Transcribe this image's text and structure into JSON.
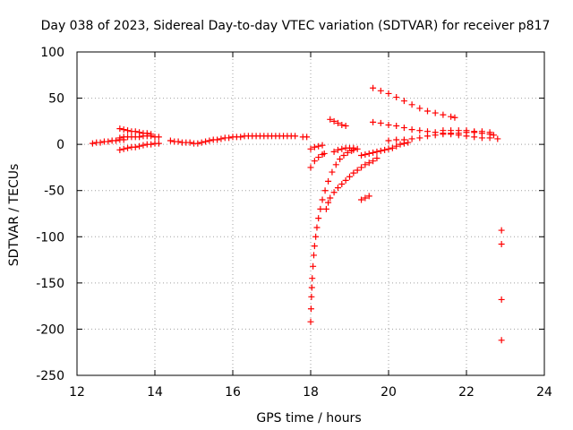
{
  "chart_data": {
    "type": "scatter",
    "title": "Day 038 of 2023, Sidereal Day-to-day VTEC variation (SDTVAR) for receiver p817",
    "xlabel": "GPS time / hours",
    "ylabel": "SDTVAR / TECUs",
    "xlim": [
      12,
      24
    ],
    "ylim": [
      -250,
      100
    ],
    "xticks": [
      12,
      14,
      16,
      18,
      20,
      22,
      24
    ],
    "yticks": [
      -250,
      -200,
      -150,
      -100,
      -50,
      0,
      50,
      100
    ],
    "grid": true,
    "marker": "plus",
    "color": "#ff0000",
    "series": [
      {
        "name": "p817",
        "points": [
          [
            12.4,
            1
          ],
          [
            12.5,
            2
          ],
          [
            12.6,
            2
          ],
          [
            12.7,
            3
          ],
          [
            12.8,
            3
          ],
          [
            12.9,
            4
          ],
          [
            13.0,
            4
          ],
          [
            13.1,
            5
          ],
          [
            13.2,
            5
          ],
          [
            13.1,
            7
          ],
          [
            13.2,
            8
          ],
          [
            13.3,
            8
          ],
          [
            13.4,
            8
          ],
          [
            13.5,
            8
          ],
          [
            13.6,
            8
          ],
          [
            13.7,
            9
          ],
          [
            13.8,
            9
          ],
          [
            13.9,
            9
          ],
          [
            14.0,
            8
          ],
          [
            14.1,
            8
          ],
          [
            13.1,
            17
          ],
          [
            13.2,
            16
          ],
          [
            13.3,
            15
          ],
          [
            13.4,
            14
          ],
          [
            13.5,
            14
          ],
          [
            13.6,
            13
          ],
          [
            13.7,
            12
          ],
          [
            13.8,
            12
          ],
          [
            13.9,
            11
          ],
          [
            13.1,
            -6
          ],
          [
            13.2,
            -5
          ],
          [
            13.3,
            -4
          ],
          [
            13.4,
            -3
          ],
          [
            13.5,
            -3
          ],
          [
            13.6,
            -2
          ],
          [
            13.7,
            -1
          ],
          [
            13.8,
            0
          ],
          [
            13.9,
            0
          ],
          [
            14.0,
            1
          ],
          [
            14.1,
            1
          ],
          [
            14.4,
            4
          ],
          [
            14.5,
            3
          ],
          [
            14.6,
            3
          ],
          [
            14.7,
            2
          ],
          [
            14.8,
            2
          ],
          [
            14.9,
            2
          ],
          [
            15.0,
            1
          ],
          [
            15.1,
            1
          ],
          [
            15.2,
            2
          ],
          [
            15.3,
            3
          ],
          [
            15.4,
            4
          ],
          [
            15.5,
            5
          ],
          [
            15.6,
            5
          ],
          [
            15.7,
            6
          ],
          [
            15.8,
            7
          ],
          [
            15.9,
            7
          ],
          [
            16.0,
            8
          ],
          [
            16.1,
            8
          ],
          [
            16.2,
            8
          ],
          [
            16.3,
            9
          ],
          [
            16.4,
            9
          ],
          [
            16.5,
            9
          ],
          [
            16.6,
            9
          ],
          [
            16.7,
            9
          ],
          [
            16.8,
            9
          ],
          [
            16.9,
            9
          ],
          [
            17.0,
            9
          ],
          [
            17.1,
            9
          ],
          [
            17.2,
            9
          ],
          [
            17.3,
            9
          ],
          [
            17.4,
            9
          ],
          [
            17.5,
            9
          ],
          [
            17.6,
            9
          ],
          [
            17.8,
            8
          ],
          [
            17.9,
            8
          ],
          [
            18.0,
            -5
          ],
          [
            18.1,
            -3
          ],
          [
            18.2,
            -2
          ],
          [
            18.3,
            -1
          ],
          [
            18.0,
            -25
          ],
          [
            18.1,
            -18
          ],
          [
            18.2,
            -14
          ],
          [
            18.3,
            -11
          ],
          [
            18.35,
            -10
          ],
          [
            18.0,
            -192
          ],
          [
            18.01,
            -178
          ],
          [
            18.02,
            -165
          ],
          [
            18.03,
            -155
          ],
          [
            18.04,
            -145
          ],
          [
            18.06,
            -132
          ],
          [
            18.08,
            -120
          ],
          [
            18.1,
            -110
          ],
          [
            18.13,
            -100
          ],
          [
            18.16,
            -90
          ],
          [
            18.2,
            -80
          ],
          [
            18.25,
            -70
          ],
          [
            18.3,
            -60
          ],
          [
            18.37,
            -50
          ],
          [
            18.45,
            -40
          ],
          [
            18.55,
            -30
          ],
          [
            18.65,
            -22
          ],
          [
            18.75,
            -16
          ],
          [
            18.85,
            -12
          ],
          [
            18.95,
            -9
          ],
          [
            19.05,
            -7
          ],
          [
            19.1,
            -6
          ],
          [
            18.4,
            -70
          ],
          [
            18.45,
            -63
          ],
          [
            18.5,
            -58
          ],
          [
            18.6,
            -52
          ],
          [
            18.7,
            -47
          ],
          [
            18.8,
            -43
          ],
          [
            18.9,
            -39
          ],
          [
            19.0,
            -35
          ],
          [
            19.1,
            -31
          ],
          [
            19.2,
            -28
          ],
          [
            19.3,
            -25
          ],
          [
            19.4,
            -22
          ],
          [
            19.5,
            -20
          ],
          [
            19.6,
            -18
          ],
          [
            19.7,
            -15
          ],
          [
            18.5,
            27
          ],
          [
            18.6,
            25
          ],
          [
            18.7,
            23
          ],
          [
            18.8,
            21
          ],
          [
            18.9,
            20
          ],
          [
            18.6,
            -8
          ],
          [
            18.7,
            -6
          ],
          [
            18.8,
            -5
          ],
          [
            18.9,
            -4
          ],
          [
            19.0,
            -4
          ],
          [
            19.1,
            -4
          ],
          [
            19.2,
            -5
          ],
          [
            19.3,
            -60
          ],
          [
            19.4,
            -58
          ],
          [
            19.5,
            -56
          ],
          [
            19.3,
            -12
          ],
          [
            19.4,
            -11
          ],
          [
            19.5,
            -10
          ],
          [
            19.6,
            -9
          ],
          [
            19.7,
            -8
          ],
          [
            19.8,
            -7
          ],
          [
            19.9,
            -6
          ],
          [
            20.0,
            -5
          ],
          [
            20.1,
            -4
          ],
          [
            20.2,
            -2
          ],
          [
            20.3,
            0
          ],
          [
            20.4,
            1
          ],
          [
            20.5,
            2
          ],
          [
            19.6,
            61
          ],
          [
            19.8,
            58
          ],
          [
            20.0,
            55
          ],
          [
            20.2,
            51
          ],
          [
            20.4,
            47
          ],
          [
            20.6,
            43
          ],
          [
            20.8,
            39
          ],
          [
            21.0,
            36
          ],
          [
            21.2,
            34
          ],
          [
            21.4,
            32
          ],
          [
            21.6,
            30
          ],
          [
            21.7,
            29
          ],
          [
            19.6,
            24
          ],
          [
            19.8,
            23
          ],
          [
            20.0,
            21
          ],
          [
            20.2,
            20
          ],
          [
            20.4,
            18
          ],
          [
            20.6,
            16
          ],
          [
            20.8,
            15
          ],
          [
            21.0,
            14
          ],
          [
            21.2,
            13
          ],
          [
            21.4,
            12
          ],
          [
            21.6,
            11
          ],
          [
            21.8,
            10
          ],
          [
            22.0,
            9
          ],
          [
            22.2,
            8
          ],
          [
            22.4,
            7
          ],
          [
            22.6,
            7
          ],
          [
            22.8,
            6
          ],
          [
            20.0,
            4
          ],
          [
            20.2,
            5
          ],
          [
            20.4,
            5
          ],
          [
            20.6,
            6
          ],
          [
            20.8,
            7
          ],
          [
            21.0,
            9
          ],
          [
            21.2,
            10
          ],
          [
            21.4,
            11
          ],
          [
            21.6,
            12
          ],
          [
            21.8,
            12
          ],
          [
            22.0,
            13
          ],
          [
            22.2,
            13
          ],
          [
            22.4,
            12
          ],
          [
            22.6,
            11
          ],
          [
            22.7,
            10
          ],
          [
            21.4,
            15
          ],
          [
            21.6,
            15
          ],
          [
            21.8,
            15
          ],
          [
            22.0,
            15
          ],
          [
            22.2,
            14
          ],
          [
            22.4,
            14
          ],
          [
            22.6,
            13
          ],
          [
            22.9,
            -93
          ],
          [
            22.9,
            -108
          ],
          [
            22.9,
            -168
          ],
          [
            22.9,
            -212
          ]
        ]
      }
    ]
  }
}
